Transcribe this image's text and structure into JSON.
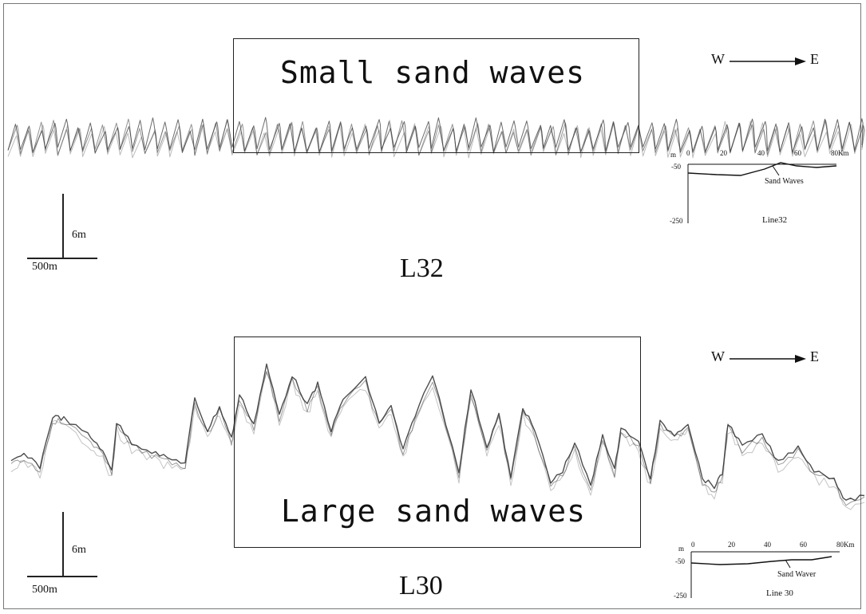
{
  "profile_l32": {
    "box_label": "Small sand waves",
    "line_name": "L32",
    "direction": {
      "west": "W",
      "east": "E"
    },
    "scale": {
      "vertical": "6m",
      "horizontal": "500m"
    },
    "inset": {
      "unit": "m",
      "x_ticks": [
        "0",
        "20",
        "40",
        "60",
        "80Km"
      ],
      "y_ticks": [
        "-50",
        "-250"
      ],
      "annotation": "Sand Waves",
      "caption": "Line32"
    }
  },
  "profile_l30": {
    "box_label": "Large sand waves",
    "line_name": "L30",
    "direction": {
      "west": "W",
      "east": "E"
    },
    "scale": {
      "vertical": "6m",
      "horizontal": "500m"
    },
    "inset": {
      "unit": "m",
      "x_ticks": [
        "0",
        "20",
        "40",
        "60",
        "80Km"
      ],
      "y_ticks": [
        "-50",
        "-250"
      ],
      "annotation": "Sand Waver",
      "caption": "Line 30"
    }
  },
  "colors": {
    "ink": "#111111",
    "trace": "#3a3a3a",
    "frame": "#777777"
  }
}
